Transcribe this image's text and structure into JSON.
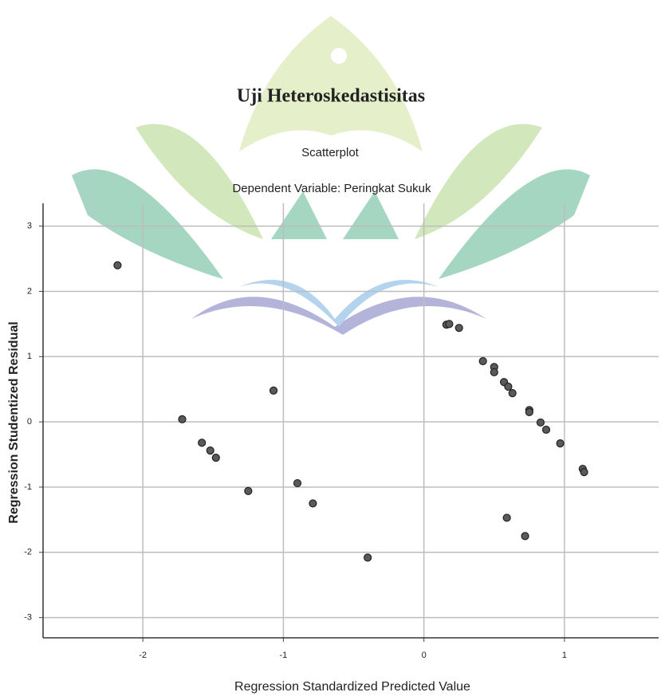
{
  "chart_data": {
    "type": "scatter",
    "title": "Uji Heteroskedastisitas",
    "subtitle": "Scatterplot",
    "caption": "Dependent Variable: Peringkat Sukuk",
    "x_label": "Regression Standardized Predicted Value",
    "y_label": "Regression Studentized Residual",
    "color": "#5a5a5a",
    "grid": true,
    "xlim": [
      -2.71,
      1.67
    ],
    "ylim": [
      -3.31,
      3.35
    ],
    "xticks": [
      -2,
      -1,
      0,
      1
    ],
    "yticks": [
      -3,
      -2,
      -1,
      0,
      1,
      2,
      3
    ],
    "x": [
      -2.18,
      -1.72,
      -1.58,
      -1.52,
      -1.48,
      -1.25,
      -1.07,
      -0.9,
      -0.79,
      -0.4,
      0.16,
      0.18,
      0.25,
      0.42,
      0.5,
      0.5,
      0.57,
      0.6,
      0.63,
      0.75,
      0.75,
      0.83,
      0.87,
      0.97,
      1.13,
      1.14,
      0.59,
      0.72
    ],
    "values": [
      2.4,
      0.04,
      -0.32,
      -0.44,
      -0.55,
      -1.06,
      0.48,
      -0.94,
      -1.25,
      -2.08,
      1.49,
      1.5,
      1.44,
      0.93,
      0.84,
      0.76,
      0.61,
      0.54,
      0.44,
      0.18,
      0.15,
      -0.01,
      -0.12,
      -0.33,
      -0.72,
      -0.77,
      -1.47,
      -1.75
    ]
  }
}
